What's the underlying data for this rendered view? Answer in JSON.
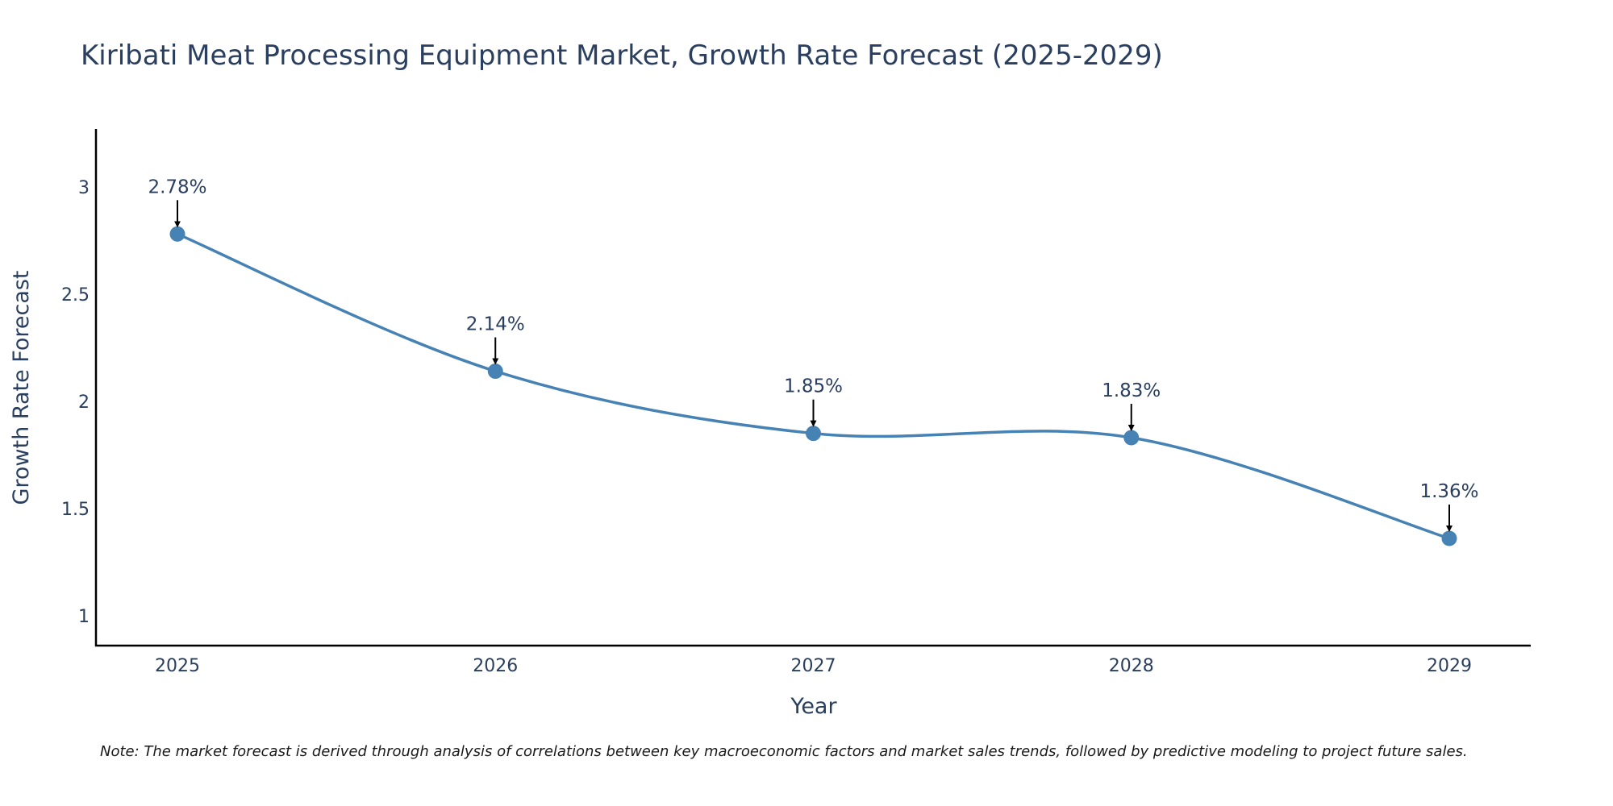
{
  "chart_data": {
    "type": "line",
    "title": "Kiribati Meat Processing Equipment Market, Growth Rate Forecast (2025-2029)",
    "xlabel": "Year",
    "ylabel": "Growth Rate Forecast",
    "categories": [
      "2025",
      "2026",
      "2027",
      "2028",
      "2029"
    ],
    "series": [
      {
        "name": "Growth Rate Forecast",
        "values": [
          2.78,
          2.14,
          1.85,
          1.83,
          1.36
        ]
      }
    ],
    "data_labels": [
      "2.78%",
      "2.14%",
      "1.85%",
      "1.83%",
      "1.36%"
    ],
    "y_ticks": [
      1,
      1.5,
      2,
      2.5,
      3
    ],
    "y_tick_labels": [
      "1",
      "1.5",
      "2",
      "2.5",
      "3"
    ],
    "ylim": [
      0.86,
      3.27
    ],
    "grid": false,
    "line_shape": "spline",
    "line_color": "#4682b4",
    "marker_color": "#4682b4",
    "arrow_color": "#000000",
    "note": "Note: The market forecast is derived through analysis of correlations between key macroeconomic factors and market sales trends, followed by predictive modeling to project future sales."
  }
}
